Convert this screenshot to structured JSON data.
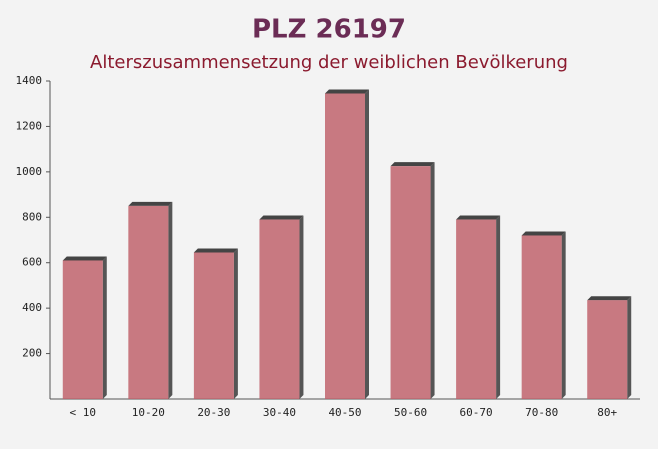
{
  "chart_data": {
    "type": "bar",
    "title": "PLZ 26197",
    "subtitle": "Alterszusammensetzung der weiblichen Bevölkerung",
    "categories": [
      "< 10",
      "10-20",
      "20-30",
      "30-40",
      "40-50",
      "50-60",
      "60-70",
      "70-80",
      "80+"
    ],
    "values": [
      610,
      850,
      645,
      790,
      1345,
      1025,
      790,
      720,
      435
    ],
    "color": "#c0636c",
    "ylim": [
      0,
      1400
    ],
    "yticks": [
      200,
      400,
      600,
      800,
      1000,
      1200,
      1400
    ],
    "grid": false
  }
}
